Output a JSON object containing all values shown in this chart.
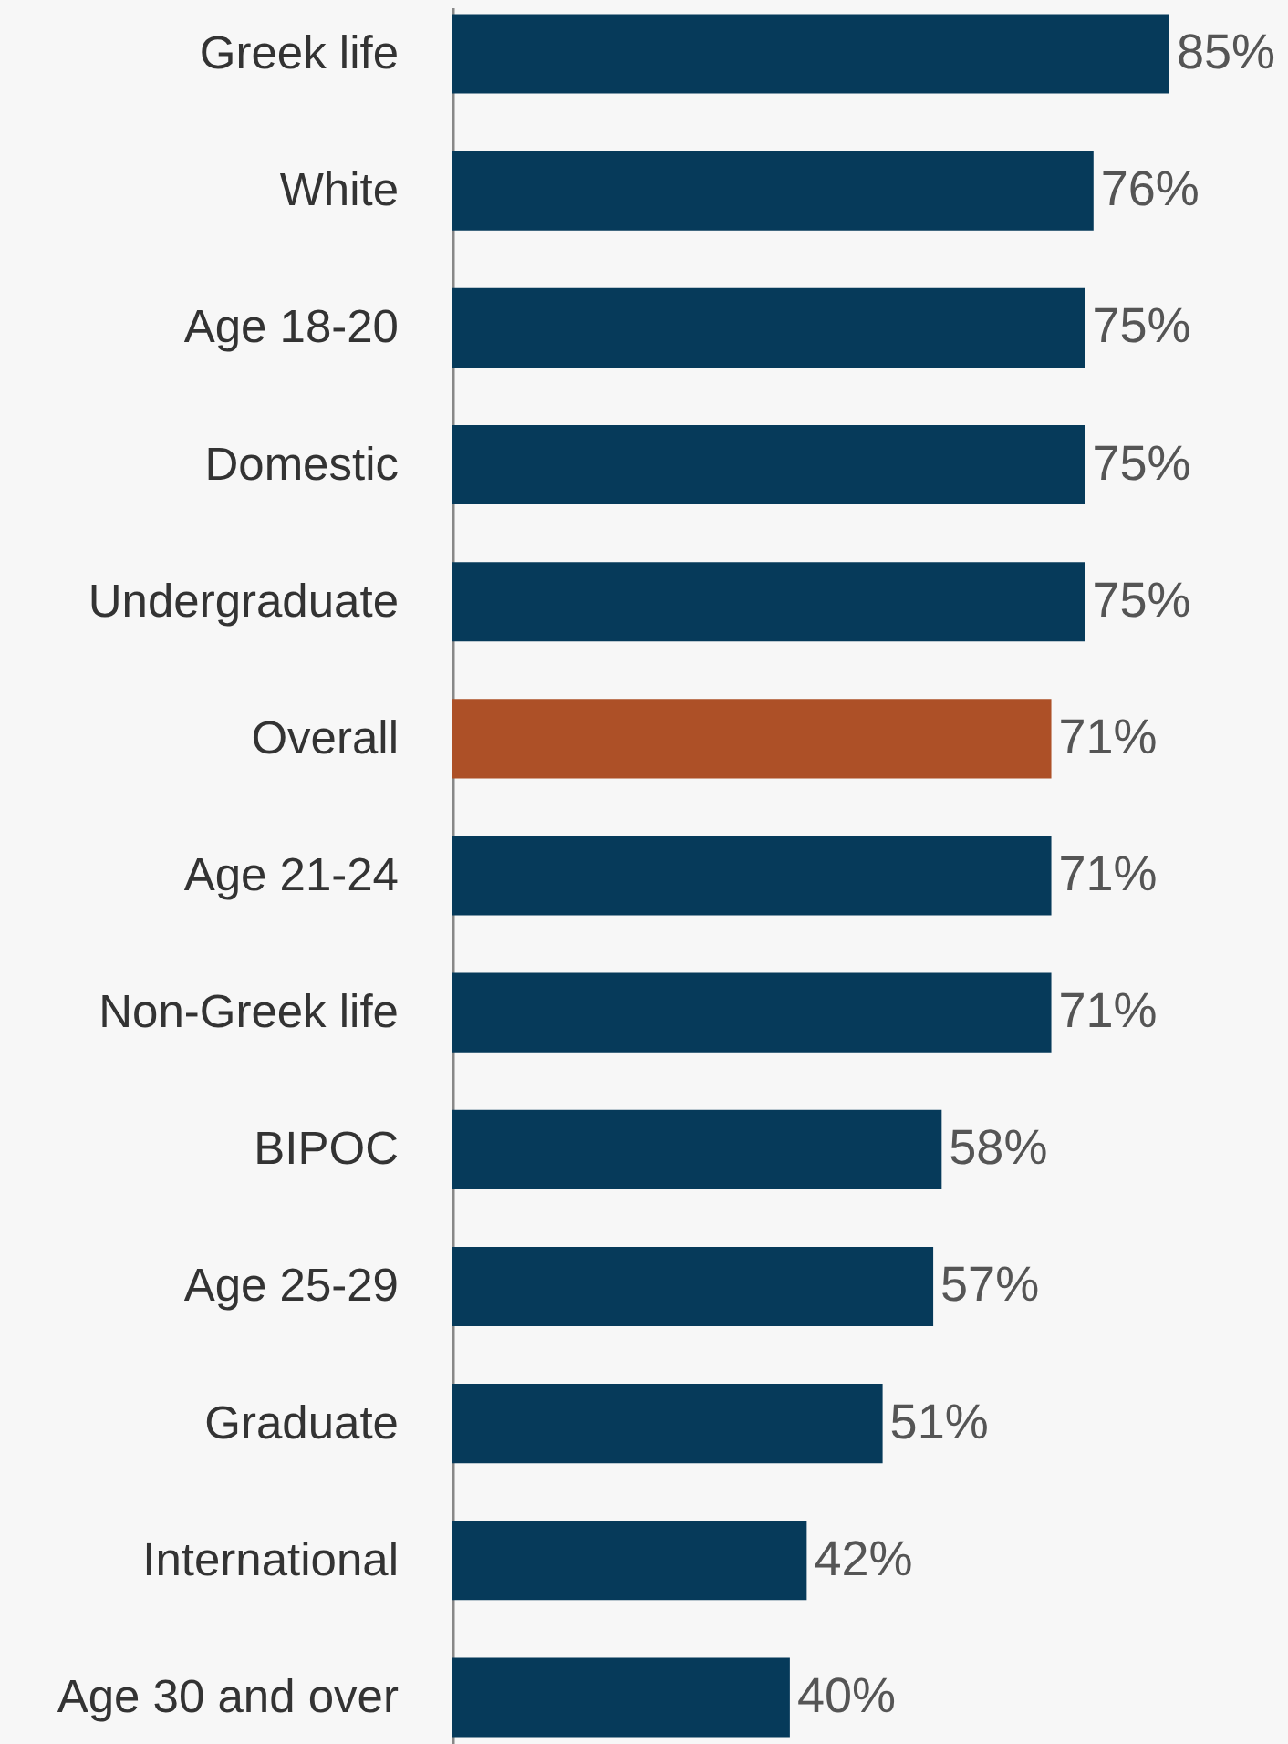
{
  "chart_data": {
    "type": "bar",
    "orientation": "horizontal",
    "categories": [
      "Greek life",
      "White",
      "Age 18-20",
      "Domestic",
      "Undergraduate",
      "Overall",
      "Age 21-24",
      "Non-Greek life",
      "BIPOC",
      "Age 25-29",
      "Graduate",
      "International",
      "Age 30 and over"
    ],
    "values": [
      85,
      76,
      75,
      75,
      75,
      71,
      71,
      71,
      58,
      57,
      51,
      42,
      40
    ],
    "value_labels": [
      "85%",
      "76%",
      "75%",
      "75%",
      "75%",
      "71%",
      "71%",
      "71%",
      "58%",
      "57%",
      "51%",
      "42%",
      "40%"
    ],
    "colors": [
      "#063a5a",
      "#063a5a",
      "#063a5a",
      "#063a5a",
      "#063a5a",
      "#ad5027",
      "#063a5a",
      "#063a5a",
      "#063a5a",
      "#063a5a",
      "#063a5a",
      "#063a5a",
      "#063a5a"
    ],
    "grid": false
  }
}
